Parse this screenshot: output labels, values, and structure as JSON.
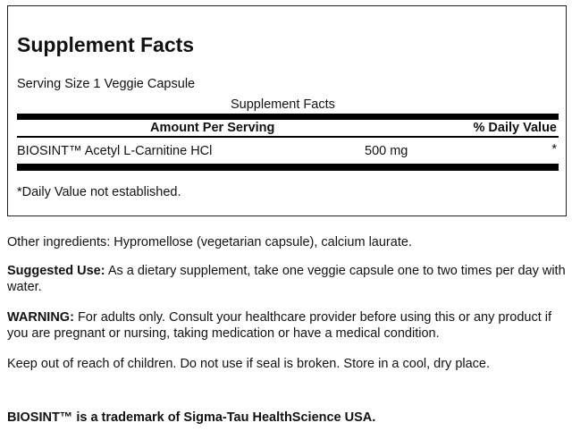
{
  "facts": {
    "title": "Supplement Facts",
    "serving_size": "Serving Size 1 Veggie Capsule",
    "caption": "Supplement Facts",
    "header_amount": "Amount Per Serving",
    "header_dv": "% Daily Value",
    "rows": [
      {
        "name": "BIOSINT™ Acetyl L-Carnitine HCl",
        "amount": "500 mg",
        "dv": "*"
      }
    ],
    "footnote": "*Daily Value not established."
  },
  "other_ingredients": "Other ingredients: Hypromellose (vegetarian capsule), calcium laurate.",
  "suggested_use": {
    "label": "Suggested Use:",
    "text": " As a dietary supplement, take one veggie capsule one to two times per day with water."
  },
  "warning": {
    "label": "WARNING:",
    "text": " For adults only. Consult your healthcare provider before using this or any product if you are pregnant or nursing, taking medication or have a medical condition."
  },
  "storage": "Keep out of reach of children. Do not use if seal is broken. Store in a cool, dry place.",
  "trademark": "BIOSINT™ is a trademark of Sigma-Tau HealthScience USA."
}
